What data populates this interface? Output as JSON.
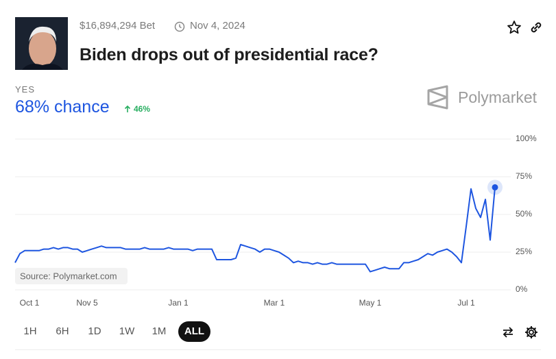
{
  "header": {
    "bet": "$16,894,294 Bet",
    "date": "Nov 4, 2024",
    "title": "Biden drops out of presidential race?"
  },
  "outcome": {
    "label": "YES",
    "chance": "68% chance",
    "change": "46%"
  },
  "brand": "Polymarket",
  "source": "Source: Polymarket.com",
  "ranges": [
    "1H",
    "6H",
    "1D",
    "1W",
    "1M",
    "ALL"
  ],
  "chart_data": {
    "type": "line",
    "color": "#1d55e0",
    "grid": true,
    "ylim": [
      0,
      100
    ],
    "yticks": [
      {
        "value": 0,
        "label": "0%"
      },
      {
        "value": 25,
        "label": "25%"
      },
      {
        "value": 50,
        "label": "50%"
      },
      {
        "value": 75,
        "label": "75%"
      },
      {
        "value": 100,
        "label": "100%"
      }
    ],
    "categories": [
      null,
      null,
      null,
      "Oct 1",
      null,
      null,
      null,
      null,
      null,
      null,
      null,
      null,
      null,
      null,
      null,
      "Nov 5",
      null,
      null,
      null,
      null,
      null,
      null,
      null,
      null,
      null,
      null,
      null,
      null,
      null,
      null,
      null,
      null,
      null,
      null,
      "Jan 1",
      null,
      null,
      null,
      null,
      null,
      null,
      null,
      null,
      null,
      null,
      null,
      null,
      null,
      null,
      null,
      null,
      null,
      null,
      null,
      "Mar 1",
      null,
      null,
      null,
      null,
      null,
      null,
      null,
      null,
      null,
      null,
      null,
      null,
      null,
      null,
      null,
      null,
      null,
      null,
      null,
      "May 1",
      null,
      null,
      null,
      null,
      null,
      null,
      null,
      null,
      null,
      null,
      null,
      null,
      null,
      null,
      null,
      null,
      null,
      null,
      null,
      "Jul 1",
      null,
      null,
      null,
      null,
      null,
      null
    ],
    "values": [
      18,
      24,
      26,
      26,
      26,
      26,
      27,
      27,
      28,
      27,
      28,
      28,
      27,
      27,
      25,
      26,
      27,
      28,
      29,
      28,
      28,
      28,
      28,
      27,
      27,
      27,
      27,
      28,
      27,
      27,
      27,
      27,
      28,
      27,
      27,
      27,
      27,
      26,
      27,
      27,
      27,
      27,
      20,
      20,
      20,
      20,
      21,
      30,
      29,
      28,
      27,
      25,
      27,
      27,
      26,
      25,
      23,
      21,
      18,
      19,
      18,
      18,
      17,
      18,
      17,
      17,
      18,
      17,
      17,
      17,
      17,
      17,
      17,
      17,
      12,
      13,
      14,
      15,
      14,
      14,
      14,
      18,
      18,
      19,
      20,
      22,
      24,
      23,
      25,
      26,
      27,
      25,
      22,
      18,
      42,
      67,
      54,
      48,
      60,
      33,
      68
    ]
  }
}
